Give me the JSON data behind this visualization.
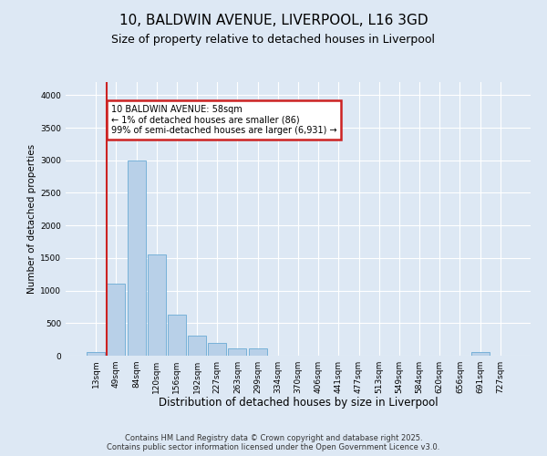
{
  "title_line1": "10, BALDWIN AVENUE, LIVERPOOL, L16 3GD",
  "title_line2": "Size of property relative to detached houses in Liverpool",
  "xlabel": "Distribution of detached houses by size in Liverpool",
  "ylabel": "Number of detached properties",
  "bar_labels": [
    "13sqm",
    "49sqm",
    "84sqm",
    "120sqm",
    "156sqm",
    "192sqm",
    "227sqm",
    "263sqm",
    "299sqm",
    "334sqm",
    "370sqm",
    "406sqm",
    "441sqm",
    "477sqm",
    "513sqm",
    "549sqm",
    "584sqm",
    "620sqm",
    "656sqm",
    "691sqm",
    "727sqm"
  ],
  "bar_values": [
    50,
    1100,
    3000,
    1550,
    625,
    310,
    190,
    110,
    110,
    0,
    0,
    0,
    0,
    0,
    0,
    0,
    0,
    0,
    0,
    50,
    0
  ],
  "bar_color": "#b8d0e8",
  "bar_edge_color": "#6aaad4",
  "vline_x": 1.0,
  "vline_color": "#cc2222",
  "annotation_text": "10 BALDWIN AVENUE: 58sqm\n← 1% of detached houses are smaller (86)\n99% of semi-detached houses are larger (6,931) →",
  "annotation_box_color": "#cc2222",
  "annotation_box_fill": "#ffffff",
  "ylim": [
    0,
    4200
  ],
  "yticks": [
    0,
    500,
    1000,
    1500,
    2000,
    2500,
    3000,
    3500,
    4000
  ],
  "bg_color": "#dde8f4",
  "plot_bg_color": "#dde8f4",
  "grid_color": "#ffffff",
  "footer_line1": "Contains HM Land Registry data © Crown copyright and database right 2025.",
  "footer_line2": "Contains public sector information licensed under the Open Government Licence v3.0.",
  "title_fontsize": 11,
  "subtitle_fontsize": 9,
  "xlabel_fontsize": 8.5,
  "ylabel_fontsize": 7.5,
  "tick_fontsize": 6.5,
  "footer_fontsize": 6.0,
  "annot_fontsize": 7.0
}
